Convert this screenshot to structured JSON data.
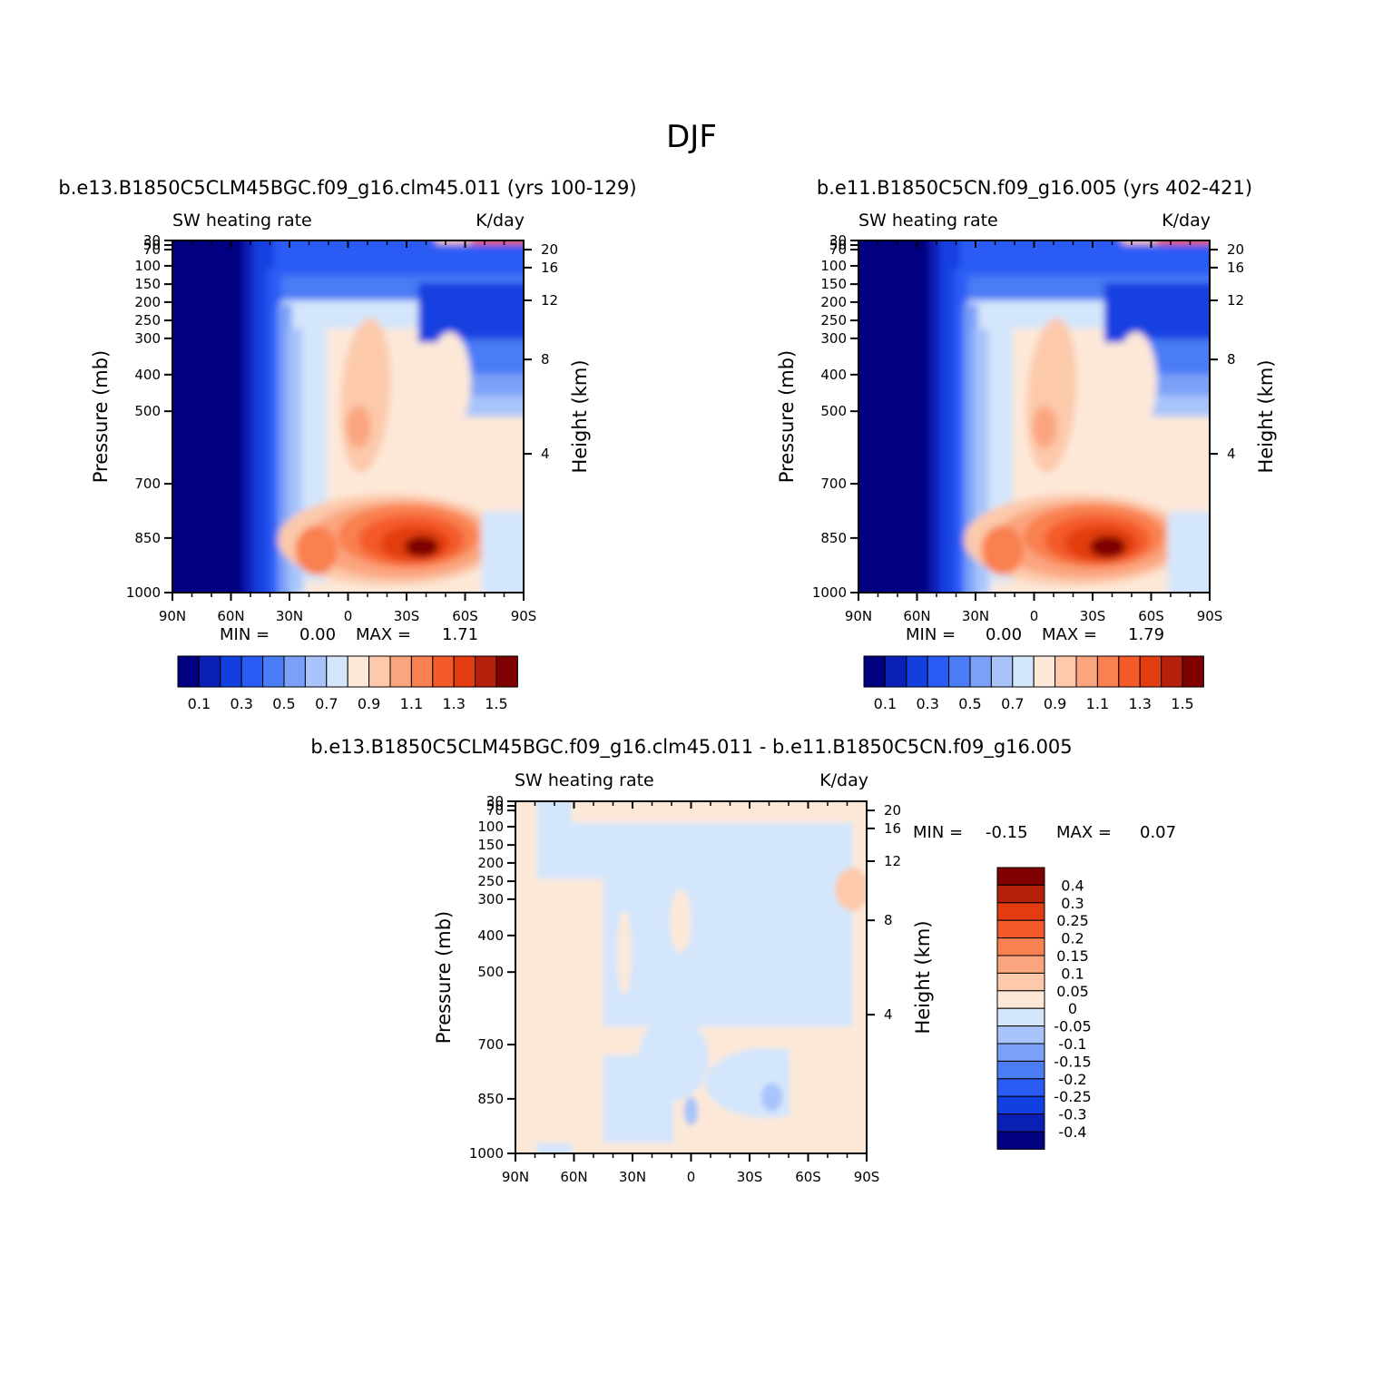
{
  "figure": {
    "season_title": "DJF"
  },
  "chart_data": [
    {
      "type": "heatmap",
      "title": "b.e13.B1850C5CLM45BGC.f09_g16.clm45.011 (yrs 100-129)",
      "left_label": "SW heating rate",
      "right_label": "K/day",
      "ylabel": "Pressure (mb)",
      "y2label": "Height (km)",
      "x_ticks": [
        "90N",
        "60N",
        "30N",
        "0",
        "30S",
        "60S",
        "90S"
      ],
      "y_ticks": [
        "30",
        "50",
        "70",
        "100",
        "150",
        "200",
        "250",
        "300",
        "400",
        "500",
        "700",
        "850",
        "1000"
      ],
      "y2_ticks": [
        "20",
        "16",
        "12",
        "8",
        "4"
      ],
      "min_label": "MIN =",
      "min_value": "0.00",
      "max_label": "MAX =",
      "max_value": "1.71",
      "colorbar_labels": [
        "0.1",
        "0.3",
        "0.5",
        "0.7",
        "0.9",
        "1.1",
        "1.3",
        "1.5"
      ],
      "colors": [
        "#000080",
        "#0a1fb3",
        "#1240e0",
        "#2a5cf5",
        "#4a7cf5",
        "#7ba0f7",
        "#a8c4fa",
        "#d4e6fb",
        "#fde8d8",
        "#fcc9ab",
        "#fba57f",
        "#f98050",
        "#f45a2a",
        "#e23c10",
        "#b5200b",
        "#7e0000"
      ],
      "field": "climatology",
      "max": 1.71
    },
    {
      "type": "heatmap",
      "title": "b.e11.B1850C5CN.f09_g16.005 (yrs 402-421)",
      "left_label": "SW heating rate",
      "right_label": "K/day",
      "ylabel": "Pressure (mb)",
      "y2label": "Height (km)",
      "x_ticks": [
        "90N",
        "60N",
        "30N",
        "0",
        "30S",
        "60S",
        "90S"
      ],
      "y_ticks": [
        "30",
        "50",
        "70",
        "100",
        "150",
        "200",
        "250",
        "300",
        "400",
        "500",
        "700",
        "850",
        "1000"
      ],
      "y2_ticks": [
        "20",
        "16",
        "12",
        "8",
        "4"
      ],
      "min_label": "MIN =",
      "min_value": "0.00",
      "max_label": "MAX =",
      "max_value": "1.79",
      "colorbar_labels": [
        "0.1",
        "0.3",
        "0.5",
        "0.7",
        "0.9",
        "1.1",
        "1.3",
        "1.5"
      ],
      "colors": [
        "#000080",
        "#0a1fb3",
        "#1240e0",
        "#2a5cf5",
        "#4a7cf5",
        "#7ba0f7",
        "#a8c4fa",
        "#d4e6fb",
        "#fde8d8",
        "#fcc9ab",
        "#fba57f",
        "#f98050",
        "#f45a2a",
        "#e23c10",
        "#b5200b",
        "#7e0000"
      ],
      "field": "climatology",
      "max": 1.79
    },
    {
      "type": "heatmap",
      "title": "b.e13.B1850C5CLM45BGC.f09_g16.clm45.011 - b.e11.B1850C5CN.f09_g16.005",
      "left_label": "SW heating rate",
      "right_label": "K/day",
      "ylabel": "Pressure (mb)",
      "y2label": "Height (km)",
      "x_ticks": [
        "90N",
        "60N",
        "30N",
        "0",
        "30S",
        "60S",
        "90S"
      ],
      "y_ticks": [
        "30",
        "50",
        "70",
        "100",
        "150",
        "200",
        "250",
        "300",
        "400",
        "500",
        "700",
        "850",
        "1000"
      ],
      "y2_ticks": [
        "20",
        "16",
        "12",
        "8",
        "4"
      ],
      "min_label": "MIN =",
      "min_value": "-0.15",
      "max_label": "MAX =",
      "max_value": "0.07",
      "colorbar_labels": [
        "0.4",
        "0.3",
        "0.25",
        "0.2",
        "0.15",
        "0.1",
        "0.05",
        "0",
        "-0.05",
        "-0.1",
        "-0.15",
        "-0.2",
        "-0.25",
        "-0.3",
        "-0.4"
      ],
      "colors": [
        "#7e0000",
        "#b5200b",
        "#e23c10",
        "#f45a2a",
        "#f98050",
        "#fba57f",
        "#fcc9ab",
        "#fde8d8",
        "#d4e6fb",
        "#a8c4fa",
        "#7ba0f7",
        "#4a7cf5",
        "#2a5cf5",
        "#1240e0",
        "#0a1fb3",
        "#000080"
      ],
      "field": "difference"
    }
  ]
}
